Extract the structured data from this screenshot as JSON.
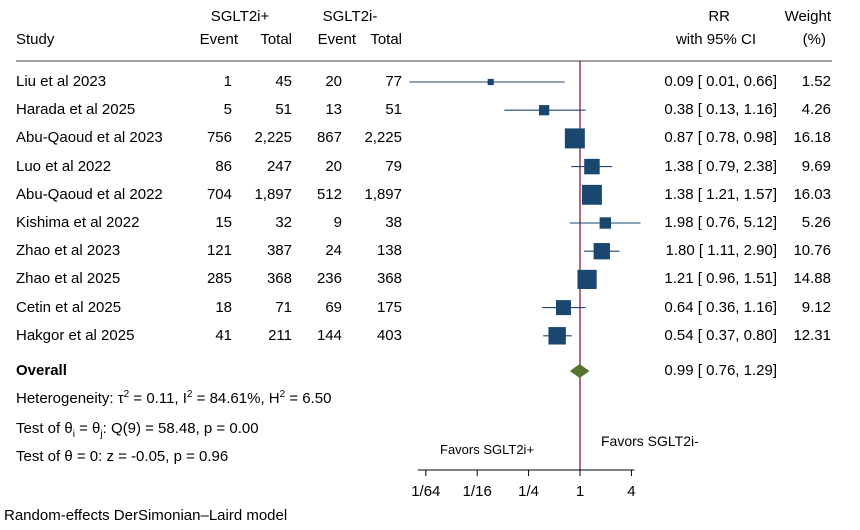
{
  "chart_data": {
    "type": "forest",
    "headers": {
      "study": "Study",
      "group1": "SGLT2i+",
      "group2": "SGLT2i-",
      "event": "Event",
      "total": "Total",
      "rr_line1": "RR",
      "rr_line2": "with 95% CI",
      "weight_line1": "Weight",
      "weight_line2": "(%)"
    },
    "studies": [
      {
        "study": "Liu et al 2023",
        "e1": "1",
        "t1": "45",
        "e2": "20",
        "t2": "77",
        "rr": 0.09,
        "lo": 0.01,
        "hi": 0.66,
        "ci_text": "0.09 [ 0.01,  0.66]",
        "weight": "1.52"
      },
      {
        "study": "Harada et al  2025",
        "e1": "5",
        "t1": "51",
        "e2": "13",
        "t2": "51",
        "rr": 0.38,
        "lo": 0.13,
        "hi": 1.16,
        "ci_text": "0.38 [ 0.13,  1.16]",
        "weight": "4.26"
      },
      {
        "study": "Abu-Qaoud et al 2023",
        "e1": "756",
        "t1": "2,225",
        "e2": "867",
        "t2": "2,225",
        "rr": 0.87,
        "lo": 0.78,
        "hi": 0.98,
        "ci_text": "0.87 [ 0.78,  0.98]",
        "weight": "16.18"
      },
      {
        "study": "Luo et al 2022",
        "e1": "86",
        "t1": "247",
        "e2": "20",
        "t2": "79",
        "rr": 1.38,
        "lo": 0.79,
        "hi": 2.38,
        "ci_text": "1.38 [ 0.79,  2.38]",
        "weight": "9.69"
      },
      {
        "study": "Abu-Qaoud et al 2022",
        "e1": "704",
        "t1": "1,897",
        "e2": "512",
        "t2": "1,897",
        "rr": 1.38,
        "lo": 1.21,
        "hi": 1.57,
        "ci_text": "1.38 [ 1.21,  1.57]",
        "weight": "16.03"
      },
      {
        "study": "Kishima et al 2022",
        "e1": "15",
        "t1": "32",
        "e2": "9",
        "t2": "38",
        "rr": 1.98,
        "lo": 0.76,
        "hi": 5.12,
        "ci_text": "1.98 [ 0.76,  5.12]",
        "weight": "5.26"
      },
      {
        "study": "Zhao et al 2023",
        "e1": "121",
        "t1": "387",
        "e2": "24",
        "t2": "138",
        "rr": 1.8,
        "lo": 1.11,
        "hi": 2.9,
        "ci_text": "1.80 [ 1.11,  2.90]",
        "weight": "10.76"
      },
      {
        "study": "Zhao et al 2025",
        "e1": "285",
        "t1": "368",
        "e2": "236",
        "t2": "368",
        "rr": 1.21,
        "lo": 0.96,
        "hi": 1.51,
        "ci_text": "1.21 [ 0.96,  1.51]",
        "weight": "14.88"
      },
      {
        "study": "Cetin et al 2025",
        "e1": "18",
        "t1": "71",
        "e2": "69",
        "t2": "175",
        "rr": 0.64,
        "lo": 0.36,
        "hi": 1.16,
        "ci_text": "0.64 [ 0.36,  1.16]",
        "weight": "9.12"
      },
      {
        "study": "Hakgor et al 2025",
        "e1": "41",
        "t1": "211",
        "e2": "144",
        "t2": "403",
        "rr": 0.54,
        "lo": 0.37,
        "hi": 0.8,
        "ci_text": "0.54 [ 0.37,  0.80]",
        "weight": "12.31"
      }
    ],
    "overall": {
      "label": "Overall",
      "rr": 0.99,
      "lo": 0.76,
      "hi": 1.29,
      "ci_text": "0.99 [ 0.76,  1.29]"
    },
    "heterogeneity": {
      "prefix": "Heterogeneity: ",
      "tau_sym": "τ",
      "tau_val": " = 0.11, ",
      "i_sym": "I",
      "i_val": " = 84.61%, ",
      "h_sym": "H",
      "h_val": " = 6.50"
    },
    "test_homog": {
      "prefix": "Test of θ",
      "sub_i": "i",
      "mid": " = θ",
      "sub_j": "j",
      "rest": ": Q(9) = 58.48, p = 0.00"
    },
    "test_overall": "Test of θ = 0: z = -0.05, p = 0.96",
    "favors_left": "Favors SGLT2i+",
    "favors_right": "Favors SGLT2i-",
    "x_ticks": [
      {
        "value": 0.015625,
        "label": "1/64"
      },
      {
        "value": 0.0625,
        "label": "1/16"
      },
      {
        "value": 0.25,
        "label": "1/4"
      },
      {
        "value": 1,
        "label": "1"
      },
      {
        "value": 4,
        "label": "4"
      }
    ],
    "x_scale": "log",
    "footnote": "Random-effects DerSimonian–Laird model",
    "colors": {
      "marker": "#1a476f",
      "ci_line": "#1a476f",
      "null_line": "#8b1a3a",
      "overall_diamond": "#55752f"
    }
  }
}
